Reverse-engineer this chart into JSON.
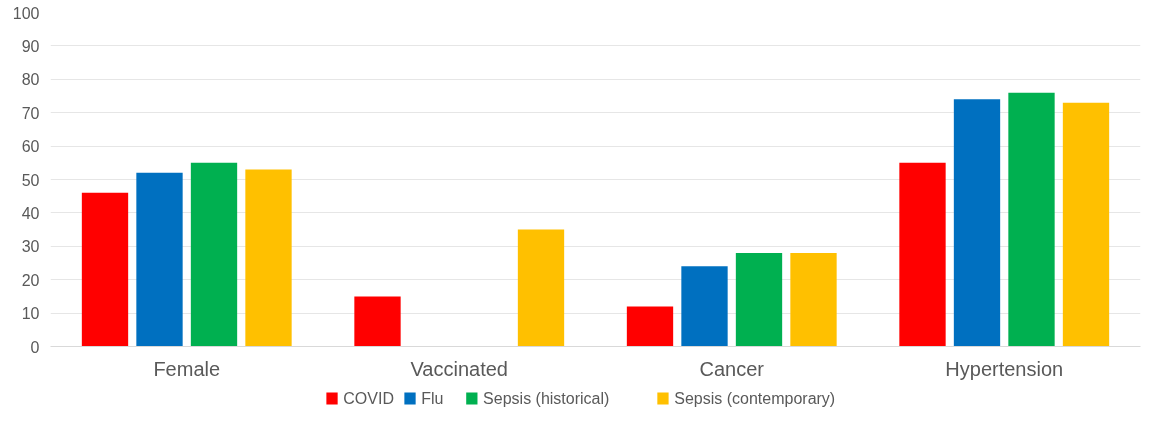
{
  "chart_data": {
    "type": "bar",
    "categories": [
      "Female",
      "Vaccinated",
      "Cancer",
      "Hypertension"
    ],
    "series": [
      {
        "name": "COVID",
        "color": "#ff0000",
        "values": [
          46,
          15,
          12,
          55
        ]
      },
      {
        "name": "Flu",
        "color": "#0070c0",
        "values": [
          52,
          null,
          24,
          74
        ]
      },
      {
        "name": "Sepsis (historical)",
        "color": "#00b050",
        "values": [
          55,
          null,
          28,
          76
        ]
      },
      {
        "name": "Sepsis (contemporary)",
        "color": "#ffc000",
        "values": [
          53,
          35,
          28,
          73
        ]
      }
    ],
    "ylim": [
      0,
      100
    ],
    "yticks": [
      0,
      10,
      20,
      30,
      40,
      50,
      60,
      70,
      80,
      90,
      100
    ],
    "grid": "y",
    "legend": "bottom"
  }
}
